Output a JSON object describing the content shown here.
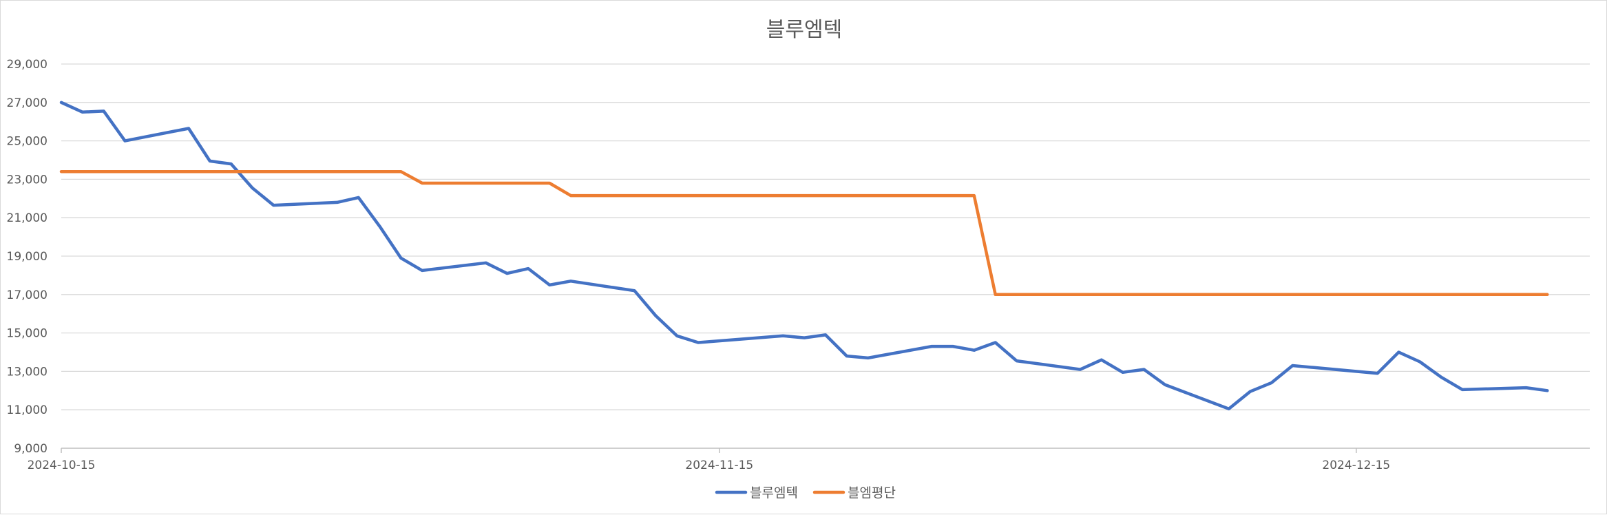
{
  "chart_data": {
    "type": "line",
    "title": "블루엠텍",
    "xlabel": "",
    "ylabel": "",
    "ylim": [
      9000,
      29000
    ],
    "yticks": [
      9000,
      11000,
      13000,
      15000,
      17000,
      19000,
      21000,
      23000,
      25000,
      27000,
      29000
    ],
    "ytick_labels": [
      "9,000",
      "11,000",
      "13,000",
      "15,000",
      "17,000",
      "19,000",
      "21,000",
      "23,000",
      "25,000",
      "27,000",
      "29,000"
    ],
    "xlim": [
      "2024-10-15",
      "2024-12-26"
    ],
    "xticks": [
      "2024-10-15",
      "2024-11-15",
      "2024-12-15"
    ],
    "grid": true,
    "legend_position": "bottom",
    "series": [
      {
        "name": "블루엠텍",
        "color": "#4472c4",
        "points": [
          [
            "2024-10-15",
            27000
          ],
          [
            "2024-10-16",
            26500
          ],
          [
            "2024-10-17",
            26550
          ],
          [
            "2024-10-18",
            25000
          ],
          [
            "2024-10-21",
            25650
          ],
          [
            "2024-10-22",
            23950
          ],
          [
            "2024-10-23",
            23800
          ],
          [
            "2024-10-24",
            22550
          ],
          [
            "2024-10-25",
            21650
          ],
          [
            "2024-10-28",
            21800
          ],
          [
            "2024-10-29",
            22050
          ],
          [
            "2024-10-30",
            20550
          ],
          [
            "2024-10-31",
            18900
          ],
          [
            "2024-11-01",
            18250
          ],
          [
            "2024-11-04",
            18650
          ],
          [
            "2024-11-05",
            18100
          ],
          [
            "2024-11-06",
            18350
          ],
          [
            "2024-11-07",
            17500
          ],
          [
            "2024-11-08",
            17700
          ],
          [
            "2024-11-11",
            17200
          ],
          [
            "2024-11-12",
            15900
          ],
          [
            "2024-11-13",
            14850
          ],
          [
            "2024-11-14",
            14500
          ],
          [
            "2024-11-18",
            14850
          ],
          [
            "2024-11-19",
            14750
          ],
          [
            "2024-11-20",
            14900
          ],
          [
            "2024-11-21",
            13800
          ],
          [
            "2024-11-22",
            13700
          ],
          [
            "2024-11-25",
            14300
          ],
          [
            "2024-11-26",
            14300
          ],
          [
            "2024-11-27",
            14100
          ],
          [
            "2024-11-28",
            14500
          ],
          [
            "2024-11-29",
            13550
          ],
          [
            "2024-12-02",
            13100
          ],
          [
            "2024-12-03",
            13600
          ],
          [
            "2024-12-04",
            12950
          ],
          [
            "2024-12-05",
            13100
          ],
          [
            "2024-12-06",
            12300
          ],
          [
            "2024-12-09",
            11050
          ],
          [
            "2024-12-10",
            11950
          ],
          [
            "2024-12-11",
            12400
          ],
          [
            "2024-12-12",
            13300
          ],
          [
            "2024-12-13",
            13200
          ],
          [
            "2024-12-16",
            12900
          ],
          [
            "2024-12-17",
            14000
          ],
          [
            "2024-12-18",
            13500
          ],
          [
            "2024-12-19",
            12700
          ],
          [
            "2024-12-20",
            12050
          ],
          [
            "2024-12-23",
            12150
          ],
          [
            "2024-12-24",
            12000
          ]
        ]
      },
      {
        "name": "블엠평단",
        "color": "#ed7d31",
        "points": [
          [
            "2024-10-15",
            23400
          ],
          [
            "2024-10-31",
            23400
          ],
          [
            "2024-11-01",
            22800
          ],
          [
            "2024-11-07",
            22800
          ],
          [
            "2024-11-08",
            22150
          ],
          [
            "2024-11-27",
            22150
          ],
          [
            "2024-11-28",
            17000
          ],
          [
            "2024-12-24",
            17000
          ]
        ]
      }
    ]
  }
}
